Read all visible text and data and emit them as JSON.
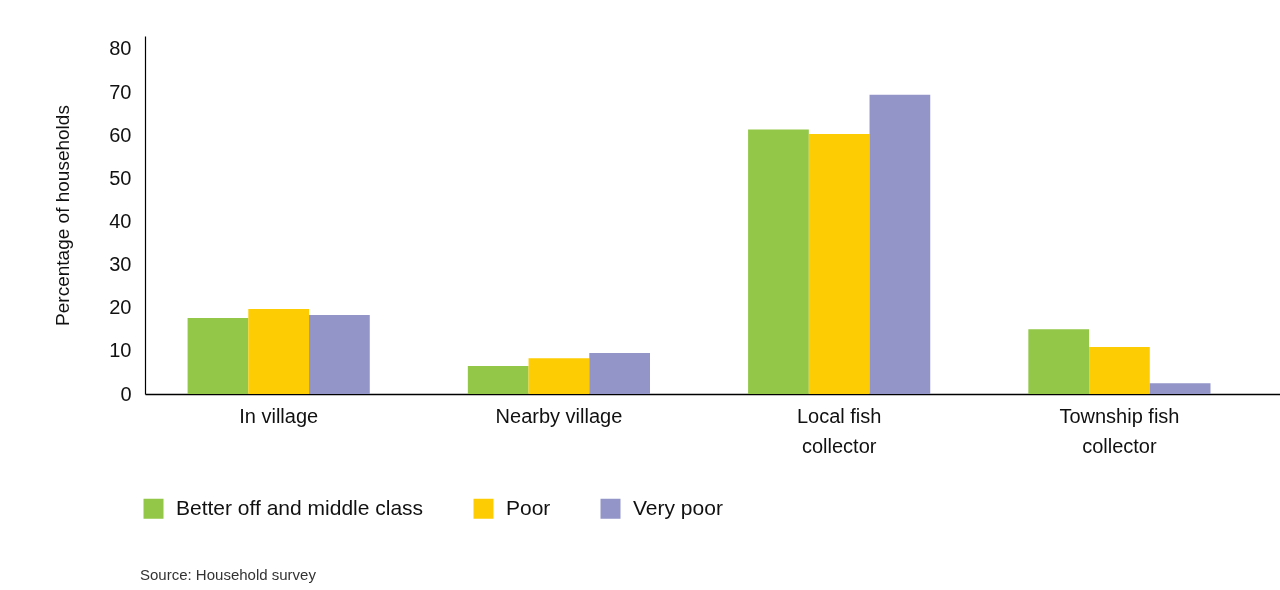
{
  "chart_data": {
    "type": "bar",
    "ylabel": "Percentage of households",
    "categories": [
      "In village",
      "Nearby village",
      "Local fish collector",
      "Township fish collector"
    ],
    "series": [
      {
        "name": "Better off and middle class",
        "color": "#92c747",
        "values": [
          17.6,
          6.5,
          61.3,
          15.0
        ]
      },
      {
        "name": "Poor",
        "color": "#fecc02",
        "values": [
          19.7,
          8.3,
          60.3,
          10.9
        ]
      },
      {
        "name": "Very poor",
        "color": "#9395c9",
        "values": [
          18.3,
          9.5,
          69.4,
          2.5
        ]
      }
    ],
    "ylim": [
      0,
      83
    ],
    "yticks": [
      0,
      10,
      20,
      30,
      40,
      50,
      60,
      70,
      80
    ],
    "legend": "bottom",
    "annotations": [
      "Source: Household survey"
    ]
  }
}
